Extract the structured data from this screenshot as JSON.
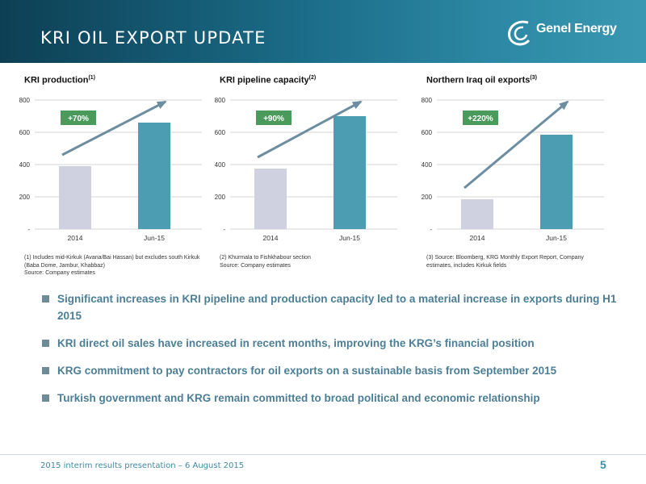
{
  "header": {
    "title": "KRI OIL EXPORT UPDATE",
    "logo_text": "Genel Energy",
    "logo_icon": "genel-swirl-icon"
  },
  "colors": {
    "bar_2014": "#cfd1e1",
    "bar_jun15": "#4c9cb2",
    "badge": "#4a9a5c",
    "arrow": "#6d8ea0"
  },
  "chart_data": [
    {
      "type": "bar",
      "title": "KRI production",
      "title_note": "(1)",
      "categories": [
        "2014",
        "Jun-15"
      ],
      "values": [
        390,
        660
      ],
      "ylim": [
        0,
        800
      ],
      "yticks": [
        "-",
        "200",
        "400",
        "600",
        "800"
      ],
      "growth_label": "+70%"
    },
    {
      "type": "bar",
      "title": "KRI pipeline capacity",
      "title_note": "(2)",
      "categories": [
        "2014",
        "Jun-15"
      ],
      "values": [
        375,
        700
      ],
      "ylim": [
        0,
        800
      ],
      "yticks": [
        "-",
        "200",
        "400",
        "600",
        "800"
      ],
      "growth_label": "+90%"
    },
    {
      "type": "bar",
      "title": "Northern Iraq oil exports",
      "title_note": "(3)",
      "categories": [
        "2014",
        "Jun-15"
      ],
      "values": [
        185,
        585
      ],
      "ylim": [
        0,
        800
      ],
      "yticks": [
        "-",
        "200",
        "400",
        "600",
        "800"
      ],
      "growth_label": "+220%"
    }
  ],
  "footnotes": [
    "(1) Includes mid-Kirkuk (Avana/Bai Hassan) but excludes south Kirkuk (Baba Dome, Jambur, Khabbaz)\nSource: Company estimates",
    "(2) Khurmala to Fishkhabour section\nSource: Company estimates",
    "(3) Source: Bloomberg, KRG Monthly Export Report, Company estimates, includes Kirkuk fields"
  ],
  "bullets": [
    "Significant increases in KRI pipeline and production capacity led to a material increase in exports during H1 2015",
    "KRI direct oil sales have increased in recent months, improving the KRG’s financial position",
    "KRG commitment to pay contractors for oil exports on a sustainable basis from September 2015",
    "Turkish government and KRG remain committed to broad political and economic relationship"
  ],
  "footer": {
    "text": "2015 interim results presentation – 6 August 2015",
    "page_number": "5"
  }
}
